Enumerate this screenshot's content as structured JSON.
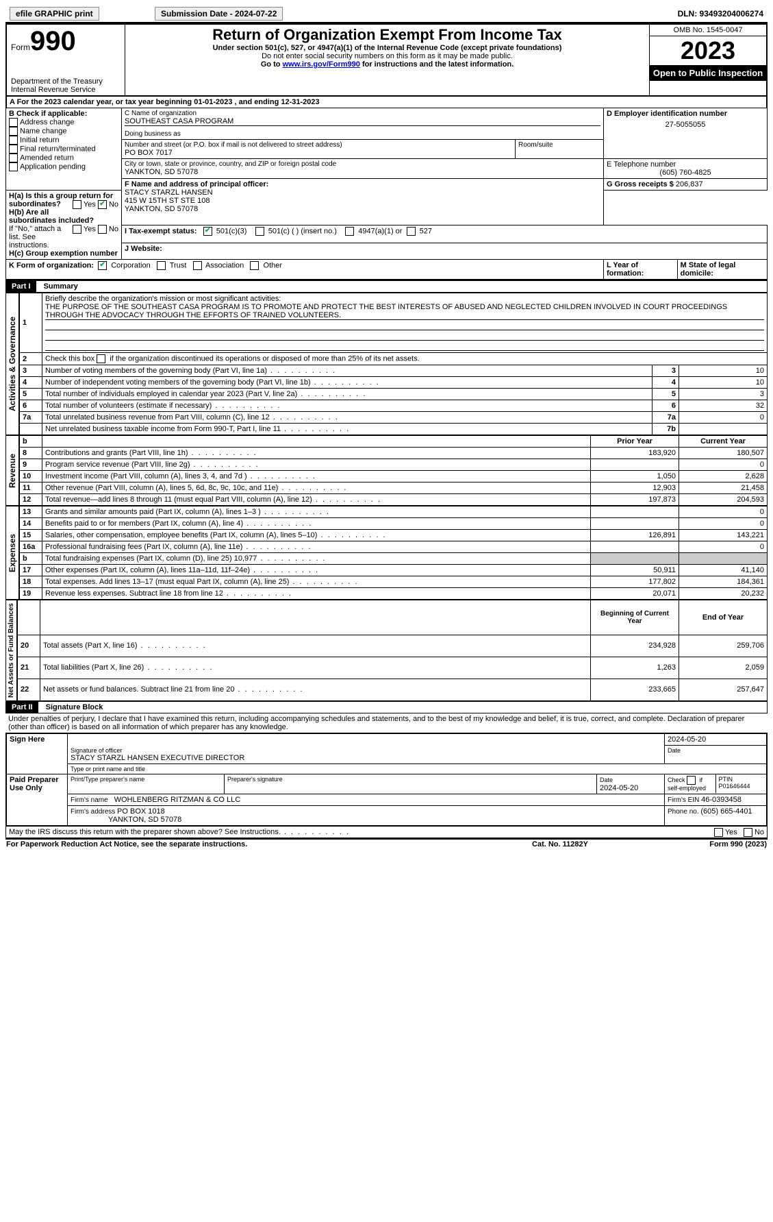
{
  "topbar": {
    "efile": "efile GRAPHIC print",
    "submission_label": "Submission Date - 2024-07-22",
    "dln_label": "DLN: 93493204006274"
  },
  "header": {
    "form_prefix": "Form",
    "form_number": "990",
    "dept": "Department of the Treasury",
    "irs": "Internal Revenue Service",
    "title": "Return of Organization Exempt From Income Tax",
    "sub1": "Under section 501(c), 527, or 4947(a)(1) of the Internal Revenue Code (except private foundations)",
    "sub2": "Do not enter social security numbers on this form as it may be made public.",
    "sub3_prefix": "Go to ",
    "sub3_link": "www.irs.gov/Form990",
    "sub3_suffix": " for instructions and the latest information.",
    "omb": "OMB No. 1545-0047",
    "year": "2023",
    "inspection": "Open to Public Inspection"
  },
  "line_a": {
    "text_prefix": "A For the 2023 calendar year, or tax year beginning ",
    "begin": "01-01-2023",
    "mid": " , and ending ",
    "end": "12-31-2023"
  },
  "box_b": {
    "label": "B Check if applicable:",
    "items": [
      "Address change",
      "Name change",
      "Initial return",
      "Final return/terminated",
      "Amended return",
      "Application pending"
    ]
  },
  "box_c": {
    "name_label": "C Name of organization",
    "name": "SOUTHEAST CASA PROGRAM",
    "dba_label": "Doing business as",
    "street_label": "Number and street (or P.O. box if mail is not delivered to street address)",
    "street": "PO BOX 7017",
    "room_label": "Room/suite",
    "city_label": "City or town, state or province, country, and ZIP or foreign postal code",
    "city": "YANKTON, SD  57078"
  },
  "box_d": {
    "label": "D Employer identification number",
    "value": "27-5055055"
  },
  "box_e": {
    "label": "E Telephone number",
    "value": "(605) 760-4825"
  },
  "box_g": {
    "label": "G Gross receipts $",
    "value": "206,837"
  },
  "box_f": {
    "label": "F Name and address of principal officer:",
    "name": "STACY STARZL HANSEN",
    "street": "415 W 15TH ST STE 108",
    "city": "YANKTON, SD  57078"
  },
  "box_h": {
    "a_label": "H(a) Is this a group return for subordinates?",
    "b_label": "H(b) Are all subordinates included?",
    "b_note": "If \"No,\" attach a list. See instructions.",
    "c_label": "H(c) Group exemption number ",
    "yes": "Yes",
    "no": "No"
  },
  "box_i": {
    "label": "I   Tax-exempt status:",
    "opt1": "501(c)(3)",
    "opt2": "501(c) (  ) (insert no.)",
    "opt3": "4947(a)(1) or",
    "opt4": "527"
  },
  "box_j": {
    "label": "J   Website:"
  },
  "box_k": {
    "label": "K Form of organization:",
    "opt1": "Corporation",
    "opt2": "Trust",
    "opt3": "Association",
    "opt4": "Other"
  },
  "box_l": {
    "label": "L Year of formation:"
  },
  "box_m": {
    "label": "M State of legal domicile:"
  },
  "part1": {
    "header": "Part I",
    "title": "Summary",
    "side_gov": "Activities & Governance",
    "side_rev": "Revenue",
    "side_exp": "Expenses",
    "side_net": "Net Assets or Fund Balances",
    "line1_label": "Briefly describe the organization's mission or most significant activities:",
    "line1_text": "THE PURPOSE OF THE SOUTHEAST CASA PROGRAM IS TO PROMOTE AND PROTECT THE BEST INTERESTS OF ABUSED AND NEGLECTED CHILDREN INVOLVED IN COURT PROCEEDINGS THROUGH THE ADVOCACY THROUGH THE EFFORTS OF TRAINED VOLUNTEERS.",
    "line2": "Check this box      if the organization discontinued its operations or disposed of more than 25% of its net assets.",
    "rows_gov": [
      {
        "n": "3",
        "label": "Number of voting members of the governing body (Part VI, line 1a)",
        "box": "3",
        "val": "10"
      },
      {
        "n": "4",
        "label": "Number of independent voting members of the governing body (Part VI, line 1b)",
        "box": "4",
        "val": "10"
      },
      {
        "n": "5",
        "label": "Total number of individuals employed in calendar year 2023 (Part V, line 2a)",
        "box": "5",
        "val": "3"
      },
      {
        "n": "6",
        "label": "Total number of volunteers (estimate if necessary)",
        "box": "6",
        "val": "32"
      },
      {
        "n": "7a",
        "label": "Total unrelated business revenue from Part VIII, column (C), line 12",
        "box": "7a",
        "val": "0"
      },
      {
        "n": "",
        "label": "Net unrelated business taxable income from Form 990-T, Part I, line 11",
        "box": "7b",
        "val": ""
      }
    ],
    "col_prior": "Prior Year",
    "col_current": "Current Year",
    "rows_rev": [
      {
        "n": "8",
        "label": "Contributions and grants (Part VIII, line 1h)",
        "prior": "183,920",
        "cur": "180,507"
      },
      {
        "n": "9",
        "label": "Program service revenue (Part VIII, line 2g)",
        "prior": "",
        "cur": "0"
      },
      {
        "n": "10",
        "label": "Investment income (Part VIII, column (A), lines 3, 4, and 7d )",
        "prior": "1,050",
        "cur": "2,628"
      },
      {
        "n": "11",
        "label": "Other revenue (Part VIII, column (A), lines 5, 6d, 8c, 9c, 10c, and 11e)",
        "prior": "12,903",
        "cur": "21,458"
      },
      {
        "n": "12",
        "label": "Total revenue—add lines 8 through 11 (must equal Part VIII, column (A), line 12)",
        "prior": "197,873",
        "cur": "204,593"
      }
    ],
    "rows_exp": [
      {
        "n": "13",
        "label": "Grants and similar amounts paid (Part IX, column (A), lines 1–3 )",
        "prior": "",
        "cur": "0"
      },
      {
        "n": "14",
        "label": "Benefits paid to or for members (Part IX, column (A), line 4)",
        "prior": "",
        "cur": "0"
      },
      {
        "n": "15",
        "label": "Salaries, other compensation, employee benefits (Part IX, column (A), lines 5–10)",
        "prior": "126,891",
        "cur": "143,221"
      },
      {
        "n": "16a",
        "label": "Professional fundraising fees (Part IX, column (A), line 11e)",
        "prior": "",
        "cur": "0"
      },
      {
        "n": "b",
        "label": "Total fundraising expenses (Part IX, column (D), line 25) 10,977",
        "prior": "SHADE",
        "cur": "SHADE"
      },
      {
        "n": "17",
        "label": "Other expenses (Part IX, column (A), lines 11a–11d, 11f–24e)",
        "prior": "50,911",
        "cur": "41,140"
      },
      {
        "n": "18",
        "label": "Total expenses. Add lines 13–17 (must equal Part IX, column (A), line 25)",
        "prior": "177,802",
        "cur": "184,361"
      },
      {
        "n": "19",
        "label": "Revenue less expenses. Subtract line 18 from line 12",
        "prior": "20,071",
        "cur": "20,232"
      }
    ],
    "col_begin": "Beginning of Current Year",
    "col_end": "End of Year",
    "rows_net": [
      {
        "n": "20",
        "label": "Total assets (Part X, line 16)",
        "prior": "234,928",
        "cur": "259,706"
      },
      {
        "n": "21",
        "label": "Total liabilities (Part X, line 26)",
        "prior": "1,263",
        "cur": "2,059"
      },
      {
        "n": "22",
        "label": "Net assets or fund balances. Subtract line 21 from line 20",
        "prior": "233,665",
        "cur": "257,647"
      }
    ]
  },
  "part2": {
    "header": "Part II",
    "title": "Signature Block",
    "jurat": "Under penalties of perjury, I declare that I have examined this return, including accompanying schedules and statements, and to the best of my knowledge and belief, it is true, correct, and complete. Declaration of preparer (other than officer) is based on all information of which preparer has any knowledge.",
    "sign_here": "Sign Here",
    "sig_officer_label": "Signature of officer",
    "sig_date": "2024-05-20",
    "date_label": "Date",
    "officer_name": "STACY STARZL HANSEN  EXECUTIVE DIRECTOR",
    "type_label": "Type or print name and title",
    "paid": "Paid Preparer Use Only",
    "prep_name_label": "Print/Type preparer's name",
    "prep_sig_label": "Preparer's signature",
    "prep_date_label": "Date",
    "prep_date": "2024-05-20",
    "check_self": "Check       if self-employed",
    "ptin_label": "PTIN",
    "ptin": "P01646444",
    "firm_name_label": "Firm's name   ",
    "firm_name": "WOHLENBERG RITZMAN & CO LLC",
    "firm_ein_label": "Firm's EIN  ",
    "firm_ein": "46-0393458",
    "firm_addr_label": "Firm's address ",
    "firm_addr1": "PO BOX 1018",
    "firm_addr2": "YANKTON, SD  57078",
    "phone_label": "Phone no. ",
    "phone": "(605) 665-4401",
    "discuss": "May the IRS discuss this return with the preparer shown above? See Instructions."
  },
  "footer": {
    "left": "For Paperwork Reduction Act Notice, see the separate instructions.",
    "mid": "Cat. No. 11282Y",
    "right": "Form 990 (2023)"
  }
}
